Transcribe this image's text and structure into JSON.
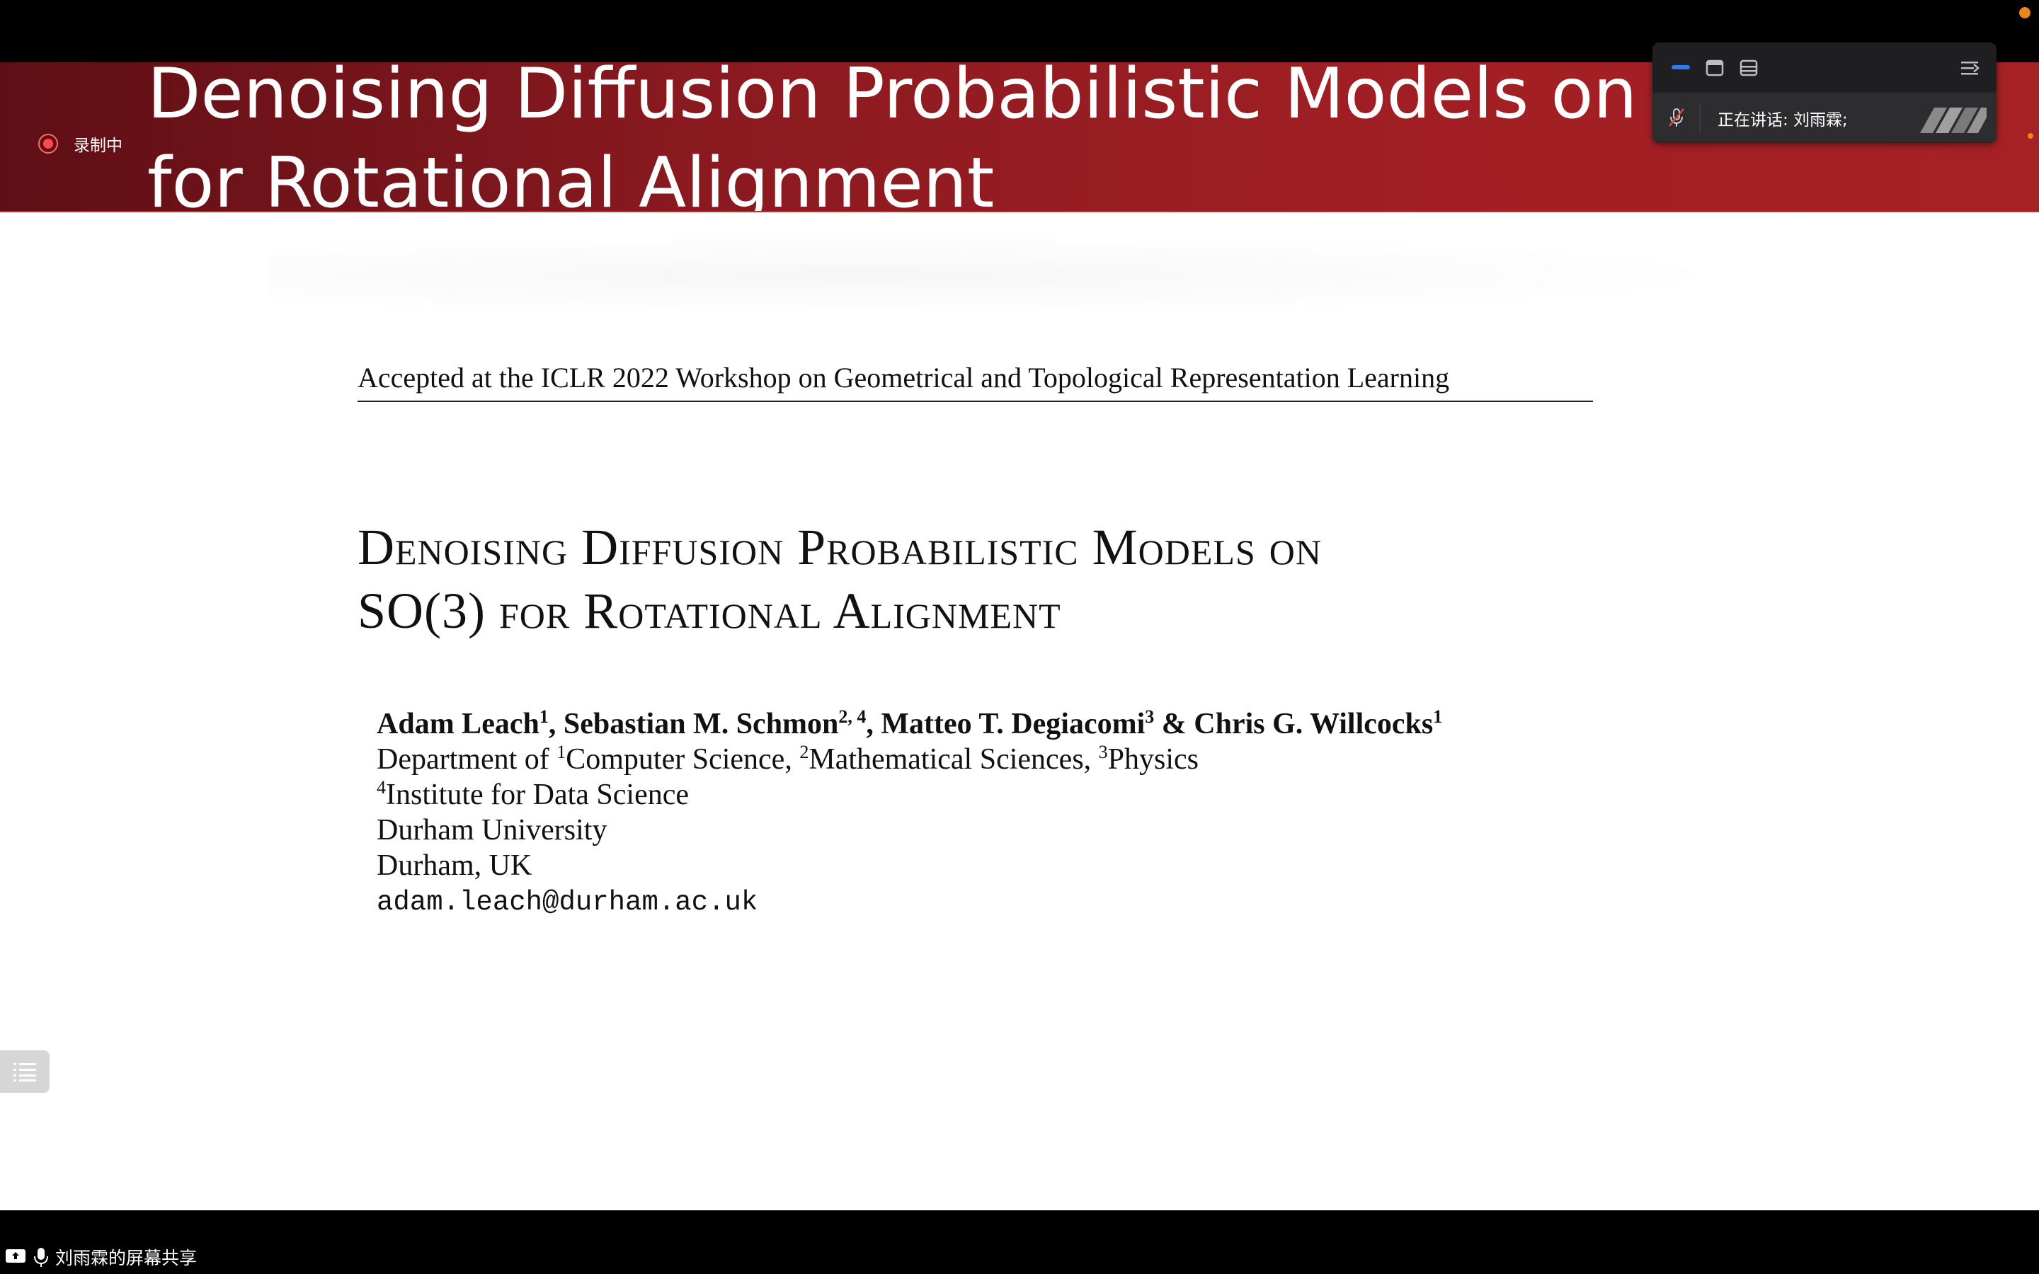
{
  "recording": {
    "label": "录制中"
  },
  "slide": {
    "banner_title": "Denoising Diffusion Probabilistic Models on\nfor Rotational Alignment",
    "header_note": "Accepted at the ICLR 2022 Workshop on Geometrical and Topological Representation Learning",
    "paper_title": "Denoising Diffusion Probabilistic Models on\nSO(3) for Rotational Alignment",
    "authors": {
      "names": [
        {
          "name": "Adam Leach",
          "sup": "1",
          "sep": ", "
        },
        {
          "name": "Sebastian M. Schmon",
          "sup": "2, 4",
          "sep": ", "
        },
        {
          "name": "Matteo T. Degiacomi",
          "sup": "3",
          "sep": " & "
        },
        {
          "name": "Chris G. Willcocks",
          "sup": "1",
          "sep": ""
        }
      ],
      "dept_prefix": "Department of ",
      "dept_1_sup": "1",
      "dept_1": "Computer Science, ",
      "dept_2_sup": "2",
      "dept_2": "Mathematical Sciences, ",
      "dept_3_sup": "3",
      "dept_3": "Physics",
      "institute_sup": "4",
      "institute": "Institute for Data Science",
      "university": "Durham University",
      "location": "Durham, UK",
      "email": "adam.leach@durham.ac.uk"
    }
  },
  "meeting_panel": {
    "speaking_label": "正在讲话: 刘雨霖;"
  },
  "bottom_bar": {
    "share_label": "刘雨霖的屏幕共享"
  },
  "colors": {
    "banner": "#a11f24",
    "record": "#ff4a4a",
    "accent_blue": "#2f7bf5"
  },
  "icons": [
    "record-icon",
    "speaker-view-icon",
    "window-icon",
    "gallery-icon",
    "collapse-icon",
    "muted-mic-icon",
    "toc-list-icon",
    "screen-share-icon",
    "mic-icon"
  ]
}
